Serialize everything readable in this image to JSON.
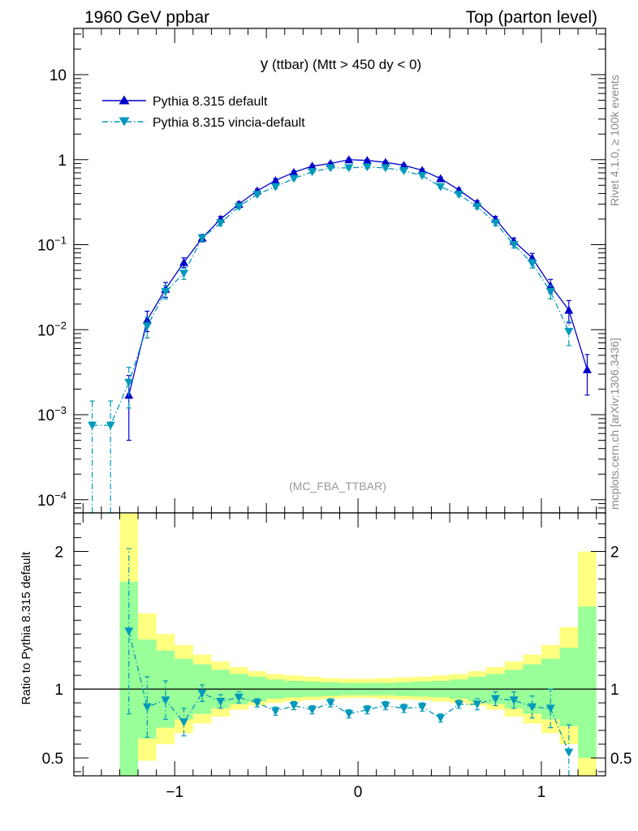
{
  "header": {
    "left": "1960 GeV ppbar",
    "right": "Top (parton level)"
  },
  "side": {
    "rivet": "Rivet 4.1.0, ≥ 100k events",
    "site": "mcplots.cern.ch [arXiv:1306.3436]"
  },
  "colors": {
    "series1": "#0000cc",
    "series2": "#0099bb",
    "band_yellow": "#ffff80",
    "band_green": "#99ff99"
  },
  "chart_data": [
    {
      "type": "line",
      "title_main": "y",
      "title_sub": "(ttbar) (Mtt > 450 dy < 0)",
      "analysis_tag": "(MC_FBA_TTBAR)",
      "yscale": "log",
      "xlim": [
        -1.55,
        1.35
      ],
      "ylim": [
        7e-05,
        35
      ],
      "xticks": [
        -1,
        0,
        1
      ],
      "xtick_labels": [
        "−1",
        "0",
        "1"
      ],
      "yticks": [
        {
          "value": 10,
          "base": "10",
          "exp": ""
        },
        {
          "value": 1,
          "base": "1",
          "exp": ""
        },
        {
          "value": 0.1,
          "base": "10",
          "exp": "−1"
        },
        {
          "value": 0.01,
          "base": "10",
          "exp": "−2"
        },
        {
          "value": 0.001,
          "base": "10",
          "exp": "−3"
        },
        {
          "value": 0.0001,
          "base": "10",
          "exp": "−4"
        }
      ],
      "legend_position": "top-left",
      "series": [
        {
          "name": "Pythia 8.315 default",
          "marker": "triangle-up",
          "line": "solid",
          "x": [
            -1.25,
            -1.15,
            -1.05,
            -0.95,
            -0.85,
            -0.75,
            -0.65,
            -0.55,
            -0.45,
            -0.35,
            -0.25,
            -0.15,
            -0.05,
            0.05,
            0.15,
            0.25,
            0.35,
            0.45,
            0.55,
            0.65,
            0.75,
            0.85,
            0.95,
            1.05,
            1.15,
            1.25
          ],
          "y": [
            0.0017,
            0.013,
            0.03,
            0.062,
            0.12,
            0.2,
            0.3,
            0.43,
            0.57,
            0.71,
            0.84,
            0.9,
            1.0,
            0.98,
            0.93,
            0.86,
            0.75,
            0.6,
            0.44,
            0.31,
            0.2,
            0.11,
            0.07,
            0.033,
            0.017,
            0.0034
          ],
          "err": [
            0.0012,
            0.0035,
            0.006,
            0.008,
            0.012,
            0.015,
            0.018,
            0.02,
            0.025,
            0.028,
            0.03,
            0.03,
            0.032,
            0.03,
            0.03,
            0.03,
            0.028,
            0.025,
            0.02,
            0.018,
            0.015,
            0.01,
            0.009,
            0.006,
            0.005,
            0.0017
          ]
        },
        {
          "name": "Pythia 8.315 vincia-default",
          "marker": "triangle-down",
          "line": "dash-dot",
          "x": [
            -1.45,
            -1.35,
            -1.25,
            -1.15,
            -1.05,
            -0.95,
            -0.85,
            -0.75,
            -0.65,
            -0.55,
            -0.45,
            -0.35,
            -0.25,
            -0.15,
            -0.05,
            0.05,
            0.15,
            0.25,
            0.35,
            0.45,
            0.55,
            0.65,
            0.75,
            0.85,
            0.95,
            1.05,
            1.15
          ],
          "y": [
            0.00075,
            0.00075,
            0.0024,
            0.011,
            0.028,
            0.046,
            0.12,
            0.18,
            0.28,
            0.39,
            0.48,
            0.6,
            0.72,
            0.8,
            0.8,
            0.82,
            0.8,
            0.74,
            0.65,
            0.48,
            0.39,
            0.28,
            0.18,
            0.1,
            0.06,
            0.028,
            0.0095
          ],
          "err": [
            0.0007,
            0.0007,
            0.0012,
            0.003,
            0.005,
            0.007,
            0.01,
            0.013,
            0.016,
            0.018,
            0.02,
            0.022,
            0.025,
            0.025,
            0.025,
            0.025,
            0.025,
            0.025,
            0.022,
            0.02,
            0.018,
            0.016,
            0.013,
            0.009,
            0.007,
            0.005,
            0.003
          ]
        }
      ]
    },
    {
      "type": "line",
      "ylabel": "Ratio to Pythia 8.315 default",
      "xlim": [
        -1.55,
        1.35
      ],
      "ylim": [
        0.37,
        2.28
      ],
      "yticks": [
        0.5,
        1,
        2
      ],
      "ytick_labels": [
        "0.5",
        "1",
        "2"
      ],
      "reference_line": 1,
      "band_edges": [
        -1.3,
        -1.2,
        -1.1,
        -1.0,
        -0.9,
        -0.8,
        -0.7,
        -0.6,
        -0.5,
        -0.4,
        -0.3,
        -0.2,
        -0.1,
        0.0,
        0.1,
        0.2,
        0.3,
        0.4,
        0.5,
        0.6,
        0.7,
        0.8,
        0.9,
        1.0,
        1.1,
        1.2,
        1.3
      ],
      "yellow_band": {
        "lo": [
          0.3,
          0.48,
          0.6,
          0.68,
          0.75,
          0.8,
          0.85,
          0.88,
          0.9,
          0.91,
          0.92,
          0.93,
          0.935,
          0.935,
          0.93,
          0.925,
          0.92,
          0.91,
          0.9,
          0.88,
          0.85,
          0.8,
          0.75,
          0.68,
          0.6,
          0.3
        ],
        "hi": [
          2.3,
          1.55,
          1.4,
          1.32,
          1.25,
          1.2,
          1.16,
          1.13,
          1.11,
          1.1,
          1.09,
          1.08,
          1.075,
          1.075,
          1.08,
          1.085,
          1.09,
          1.1,
          1.11,
          1.13,
          1.16,
          1.2,
          1.25,
          1.32,
          1.45,
          2.0
        ]
      },
      "green_band": {
        "lo": [
          0.3,
          0.64,
          0.72,
          0.78,
          0.82,
          0.86,
          0.89,
          0.91,
          0.93,
          0.94,
          0.945,
          0.95,
          0.955,
          0.955,
          0.955,
          0.95,
          0.945,
          0.94,
          0.93,
          0.91,
          0.89,
          0.86,
          0.82,
          0.78,
          0.73,
          0.5
        ],
        "hi": [
          1.78,
          1.36,
          1.28,
          1.22,
          1.18,
          1.14,
          1.11,
          1.09,
          1.07,
          1.06,
          1.055,
          1.05,
          1.045,
          1.045,
          1.045,
          1.05,
          1.055,
          1.06,
          1.07,
          1.09,
          1.11,
          1.14,
          1.18,
          1.22,
          1.3,
          1.6
        ]
      },
      "series": [
        {
          "name": "Pythia 8.315 vincia-default / Pythia 8.315 default",
          "x": [
            -1.25,
            -1.15,
            -1.05,
            -0.95,
            -0.85,
            -0.75,
            -0.65,
            -0.55,
            -0.45,
            -0.35,
            -0.25,
            -0.15,
            -0.05,
            0.05,
            0.15,
            0.25,
            0.35,
            0.45,
            0.55,
            0.65,
            0.75,
            0.85,
            0.95,
            1.05,
            1.15
          ],
          "y": [
            1.42,
            0.87,
            0.92,
            0.76,
            0.97,
            0.91,
            0.94,
            0.9,
            0.84,
            0.88,
            0.85,
            0.9,
            0.82,
            0.85,
            0.88,
            0.86,
            0.87,
            0.79,
            0.89,
            0.89,
            0.93,
            0.92,
            0.87,
            0.86,
            0.54
          ],
          "err": [
            0.6,
            0.22,
            0.14,
            0.1,
            0.06,
            0.05,
            0.04,
            0.03,
            0.03,
            0.03,
            0.03,
            0.03,
            0.03,
            0.03,
            0.03,
            0.03,
            0.03,
            0.03,
            0.03,
            0.04,
            0.05,
            0.06,
            0.08,
            0.14,
            0.2
          ]
        }
      ]
    }
  ]
}
